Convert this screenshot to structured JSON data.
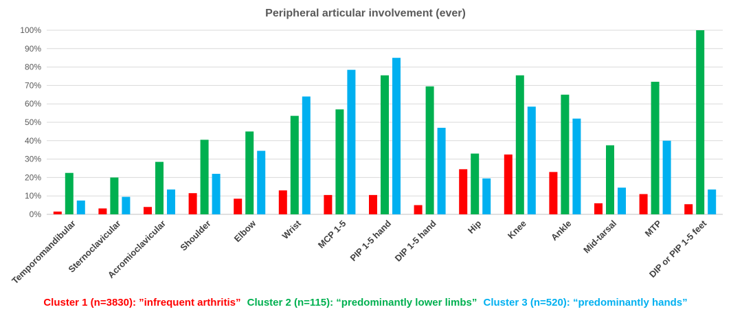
{
  "chart_data": {
    "type": "bar",
    "title": "Peripheral articular involvement (ever)",
    "xlabel": "",
    "ylabel": "",
    "ylim": [
      0,
      100
    ],
    "yticks": [
      "0%",
      "10%",
      "20%",
      "30%",
      "40%",
      "50%",
      "60%",
      "70%",
      "80%",
      "90%",
      "100%"
    ],
    "grid": true,
    "legend_position": "bottom",
    "categories": [
      "Temporomandibular",
      "Sternoclavicular",
      "Acromioclavicular",
      "Shoulder",
      "Elbow",
      "Wrist",
      "MCP 1-5",
      "PIP 1-5 hand",
      "DIP 1-5 hand",
      "Hip",
      "Knee",
      "Ankle",
      "Mid-tarsal",
      "MTP",
      "DIP or PIP 1-5 feet"
    ],
    "series": [
      {
        "name": "Cluster 1 (n=3830): ”infrequent arthritis”",
        "color": "#ff0000",
        "values": [
          1.5,
          3.2,
          4.0,
          11.5,
          8.5,
          13.0,
          10.5,
          10.5,
          5.0,
          24.5,
          32.5,
          23.0,
          6.0,
          11.0,
          5.5
        ]
      },
      {
        "name": "Cluster 2 (n=115): “predominantly lower limbs”",
        "color": "#00b050",
        "values": [
          22.5,
          20.0,
          28.5,
          40.5,
          45.0,
          53.5,
          57.0,
          75.5,
          69.5,
          33.0,
          75.5,
          65.0,
          37.5,
          72.0,
          100.0
        ]
      },
      {
        "name": "Cluster 3 (n=520): “predominantly hands”",
        "color": "#00b0f0",
        "values": [
          7.5,
          9.5,
          13.5,
          22.0,
          34.5,
          64.0,
          78.5,
          85.0,
          47.0,
          19.5,
          58.5,
          52.0,
          14.5,
          40.0,
          13.5
        ]
      }
    ]
  }
}
